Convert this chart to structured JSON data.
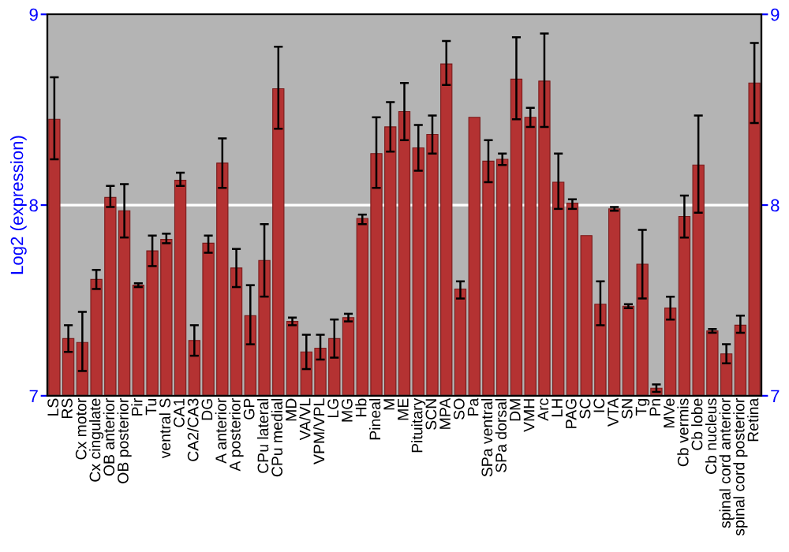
{
  "chart_data": {
    "type": "bar",
    "ylabel": "Log2 (expression)",
    "categories": [
      "LS",
      "RS",
      "Cx motor",
      "Cx cingulate",
      "OB anterior",
      "OB posterior",
      "Pir",
      "Tu",
      "ventral S",
      "CA1",
      "CA2/CA3",
      "DG",
      "A anterior",
      "A posterior",
      "GP",
      "CPu lateral",
      "CPu medial",
      "MD",
      "VA/VL",
      "VPM/VPL",
      "LG",
      "MG",
      "Hb",
      "Pineal",
      "M",
      "ME",
      "Pituitary",
      "SCN",
      "MPA",
      "SO",
      "Pa",
      "SPa ventral",
      "SPa dorsal",
      "DM",
      "VMH",
      "Arc",
      "LH",
      "PAG",
      "SC",
      "IC",
      "VTA",
      "SN",
      "Tg",
      "Pn",
      "MVe",
      "Cb vermis",
      "Cb lobe",
      "Cb nucleus",
      "spinal cord anterior",
      "spinal cord posterior",
      "Retina"
    ],
    "values": [
      8.45,
      7.3,
      7.28,
      7.61,
      8.04,
      7.97,
      7.58,
      7.76,
      7.82,
      8.13,
      7.29,
      7.8,
      8.22,
      7.67,
      7.42,
      7.71,
      8.61,
      7.39,
      7.23,
      7.25,
      7.3,
      7.41,
      7.93,
      8.27,
      8.41,
      8.49,
      8.3,
      8.37,
      8.74,
      7.56,
      8.46,
      8.23,
      8.24,
      8.66,
      8.46,
      8.65,
      8.12,
      8.01,
      7.84,
      7.48,
      7.98,
      7.47,
      7.69,
      7.04,
      7.46,
      7.94,
      8.21,
      7.34,
      7.22,
      7.37,
      8.64
    ],
    "errors": [
      [
        8.24,
        8.67
      ],
      [
        7.23,
        7.37
      ],
      [
        7.13,
        7.44
      ],
      [
        7.56,
        7.66
      ],
      [
        7.99,
        8.1
      ],
      [
        7.83,
        8.11
      ],
      [
        7.57,
        7.59
      ],
      [
        7.68,
        7.84
      ],
      [
        7.8,
        7.85
      ],
      [
        8.1,
        8.17
      ],
      [
        7.21,
        7.37
      ],
      [
        7.75,
        7.84
      ],
      [
        8.09,
        8.35
      ],
      [
        7.57,
        7.77
      ],
      [
        7.27,
        7.58
      ],
      [
        7.52,
        7.9
      ],
      [
        8.4,
        8.83
      ],
      [
        7.37,
        7.41
      ],
      [
        7.14,
        7.32
      ],
      [
        7.19,
        7.32
      ],
      [
        7.2,
        7.4
      ],
      [
        7.39,
        7.43
      ],
      [
        7.9,
        7.95
      ],
      [
        8.09,
        8.46
      ],
      [
        8.28,
        8.54
      ],
      [
        8.34,
        8.64
      ],
      [
        8.18,
        8.42
      ],
      [
        8.27,
        8.47
      ],
      [
        8.63,
        8.86
      ],
      [
        7.51,
        7.6
      ],
      null,
      [
        8.12,
        8.34
      ],
      [
        8.21,
        8.27
      ],
      [
        8.45,
        8.88
      ],
      [
        8.41,
        8.51
      ],
      [
        8.41,
        8.9
      ],
      [
        7.98,
        8.27
      ],
      [
        7.98,
        8.03
      ],
      null,
      [
        7.37,
        7.6
      ],
      [
        7.97,
        7.99
      ],
      [
        7.46,
        7.48
      ],
      [
        7.51,
        7.87
      ],
      [
        7.02,
        7.06
      ],
      [
        7.4,
        7.52
      ],
      [
        7.83,
        8.05
      ],
      [
        7.96,
        8.47
      ],
      [
        7.33,
        7.35
      ],
      [
        7.17,
        7.27
      ],
      [
        7.33,
        7.42
      ],
      [
        8.43,
        8.85
      ]
    ],
    "color": "#b43232",
    "ylim": [
      7,
      9
    ],
    "yticks": [
      7,
      8,
      9
    ],
    "y2lim": [
      7,
      9
    ],
    "y2ticks": [
      7,
      8,
      9
    ],
    "grid": "y"
  }
}
